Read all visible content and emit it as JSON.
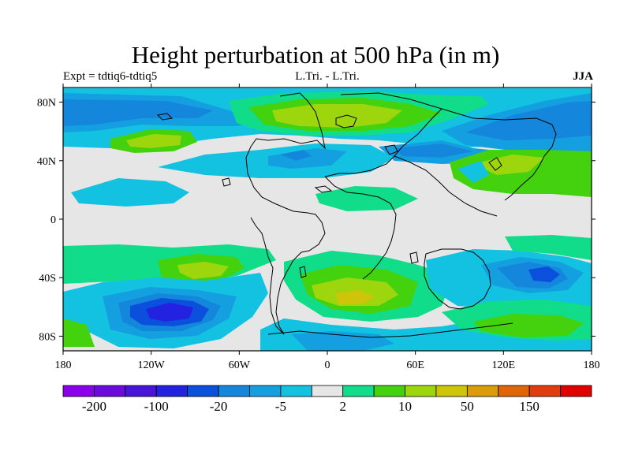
{
  "header": {
    "title": "Height perturbation at 500 hPa (in m)",
    "left_string": "Expt = tdtiq6-tdtiq5",
    "center_string": "L.Tri. - L.Tri.",
    "right_string": "JJA"
  },
  "map": {
    "lat_ticks": [
      {
        "value": 80,
        "label": "80N"
      },
      {
        "value": 40,
        "label": "40N"
      },
      {
        "value": 0,
        "label": "0"
      },
      {
        "value": -40,
        "label": "40S"
      },
      {
        "value": -80,
        "label": "80S"
      }
    ],
    "lon_ticks": [
      {
        "value": -180,
        "label": "180"
      },
      {
        "value": -120,
        "label": "120W"
      },
      {
        "value": -60,
        "label": "60W"
      },
      {
        "value": 0,
        "label": "0"
      },
      {
        "value": 60,
        "label": "60E"
      },
      {
        "value": 120,
        "label": "120E"
      },
      {
        "value": 180,
        "label": "180"
      }
    ],
    "lon_range": [
      -180,
      180
    ],
    "lat_range": [
      -90,
      90
    ]
  },
  "colorbar": {
    "labels": [
      "-200",
      "-100",
      "-20",
      "-5",
      "2",
      "10",
      "50",
      "150"
    ],
    "colors": [
      "#8a00ea",
      "#6a0adc",
      "#4814d8",
      "#2222e0",
      "#0a50dc",
      "#1486dc",
      "#14a0e0",
      "#12c2e0",
      "#e6e6e6",
      "#10dc8a",
      "#44d20e",
      "#9ed60e",
      "#cec40a",
      "#dc9c0a",
      "#e06408",
      "#e03c10",
      "#e00000"
    ]
  }
}
